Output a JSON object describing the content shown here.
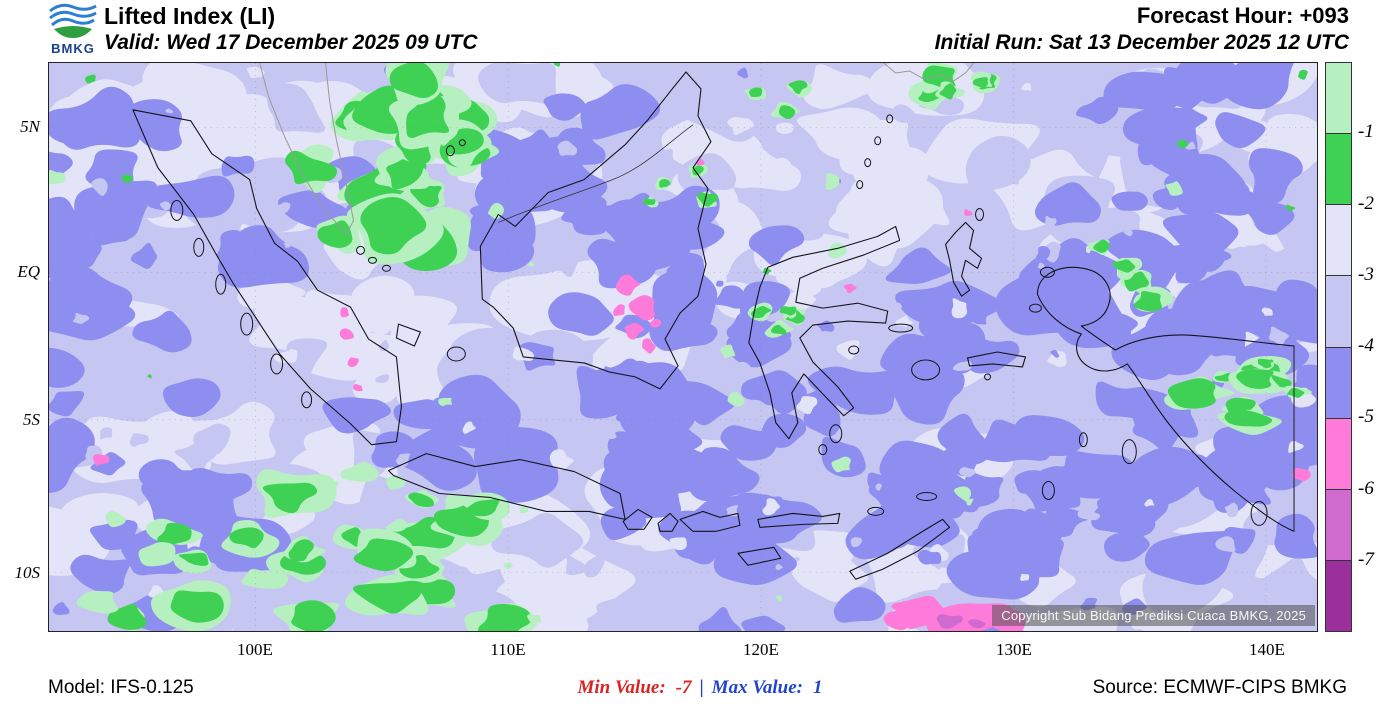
{
  "header": {
    "logo_label": "BMKG",
    "title": "Lifted Index (LI)",
    "valid_line": "Valid: Wed 17 December 2025 09 UTC",
    "forecast_hour_line": "Forecast Hour: +093",
    "initial_run_line": "Initial Run: Sat 13 December 2025 12 UTC"
  },
  "map": {
    "lat_labels": [
      "5N",
      "EQ",
      "5S",
      "10S"
    ],
    "lon_labels": [
      "100E",
      "110E",
      "120E",
      "130E",
      "140E"
    ],
    "copyright": "Copyright Sub Bidang Prediksi Cuaca BMKG, 2025"
  },
  "legend": {
    "tick_labels": [
      "-1",
      "-2",
      "-3",
      "-4",
      "-5",
      "-6",
      "-7"
    ],
    "cell_colors": [
      "#b7f0c0",
      "#3ed154",
      "#e4e4f9",
      "#c6c6f2",
      "#8e8ef0",
      "#ff7bd9",
      "#cf6bcf",
      "#9b2f9b"
    ]
  },
  "footer": {
    "model": "Model: IFS-0.125",
    "min_label": "Min Value:",
    "min_value": "-7",
    "separator": "|",
    "max_label": "Max Value:",
    "max_value": "1",
    "source": "Source: ECMWF-CIPS BMKG"
  },
  "chart_data": {
    "type": "heatmap",
    "title": "Lifted Index (LI)",
    "parameter": "Lifted Index (filled contours over Indonesia region)",
    "valid_time": "Wed 17 December 2025 09 UTC",
    "initial_run": "Sat 13 December 2025 12 UTC",
    "forecast_hour": "+093",
    "model": "IFS-0.125",
    "source": "ECMWF-CIPS BMKG",
    "x_axis": {
      "ticks": [
        "100E",
        "110E",
        "120E",
        "130E",
        "140E"
      ],
      "range_approx": [
        "92E",
        "142E"
      ]
    },
    "y_axis": {
      "ticks": [
        "5N",
        "EQ",
        "5S",
        "10S"
      ],
      "range_approx": [
        "12S",
        "7N"
      ]
    },
    "contour_levels": [
      -1,
      -2,
      -3,
      -4,
      -5,
      -6,
      -7
    ],
    "level_colors_top_to_bottom": [
      "#b7f0c0",
      "#3ed154",
      "#e4e4f9",
      "#c6c6f2",
      "#8e8ef0",
      "#ff7bd9",
      "#cf6bcf",
      "#9b2f9b"
    ],
    "min_value": -7,
    "max_value": 1,
    "legend_position": "right",
    "grid": "dashed graticule at labeled ticks"
  }
}
